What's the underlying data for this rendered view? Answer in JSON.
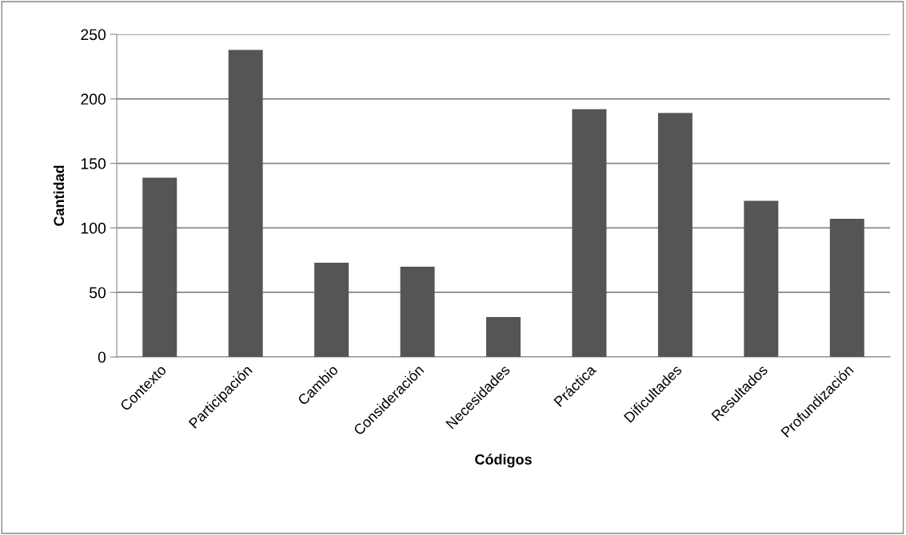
{
  "chart_data": {
    "type": "bar",
    "xlabel": "Códigos",
    "ylabel": "Cantidad",
    "categories": [
      "Contexto",
      "Participación",
      "Cambio",
      "Consideración",
      "Necesidades",
      "Práctica",
      "Dificultades",
      "Resultados",
      "Profundización"
    ],
    "values": [
      139,
      238,
      73,
      70,
      31,
      192,
      189,
      121,
      107
    ],
    "color": "#555555",
    "ylim": [
      0,
      250
    ],
    "yticks": [
      0,
      50,
      100,
      150,
      200,
      250
    ],
    "grid": "y",
    "legend": false
  }
}
